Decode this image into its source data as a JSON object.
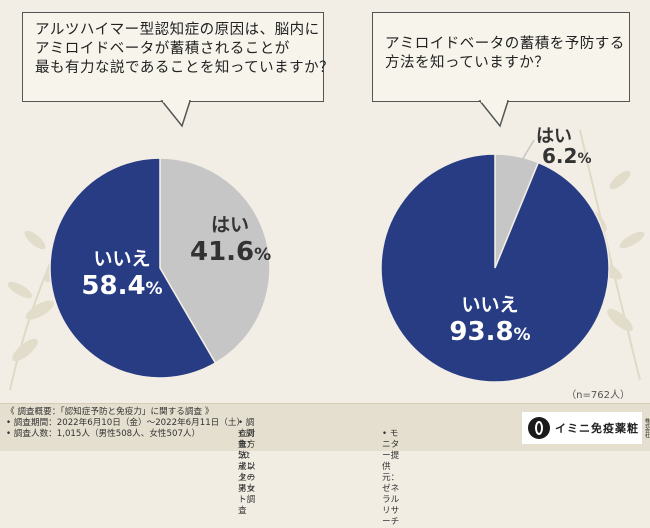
{
  "chart_data": [
    {
      "type": "pie",
      "title": "アルツハイマー型認知症の原因は、脳内にアミロイドベータが蓄積されることが最も有力な説であることを知っていますか？",
      "title_lines": [
        "アルツハイマー型認知症の原因は、脳内に",
        "アミロイドベータが蓄積されることが",
        "最も有力な説であることを知っていますか？"
      ],
      "slices": [
        {
          "label": "はい",
          "value": 41.6,
          "display": "41.6",
          "color": "#c6c6c6"
        },
        {
          "label": "いいえ",
          "value": 58.4,
          "display": "58.4",
          "color": "#283c84"
        }
      ]
    },
    {
      "type": "pie",
      "title": "アミロイドベータの蓄積を予防する方法を知っていますか？",
      "title_lines": [
        "アミロイドベータの蓄積を予防する",
        "方法を知っていますか？"
      ],
      "slices": [
        {
          "label": "はい",
          "value": 6.2,
          "display": "6.2",
          "color": "#c6c6c6"
        },
        {
          "label": "いいえ",
          "value": 93.8,
          "display": "93.8",
          "color": "#283c84"
        }
      ],
      "note": "（n=762人）"
    }
  ],
  "colors": {
    "yes": "#c6c6c6",
    "no": "#283c84",
    "background": "#f2eee5",
    "footer": "#e5dfcf"
  },
  "footer": {
    "heading": "《 調査概要：「認知症予防と免疫力」に関する調査 》",
    "period": "• 調査期間：2022年6月10日（金）〜2022年6月11日（土）",
    "respondents": "• 調査人数：1,015人（男性508人、女性507人）",
    "target": "• 調査対象：50歳以上の男女",
    "method": "• 調査方法：インターネット調査",
    "monitor": "• モニター提供元：ゼネラルリサーチ"
  },
  "brand": {
    "name": "イミニ免疫薬粧",
    "sub": "株式会社"
  }
}
